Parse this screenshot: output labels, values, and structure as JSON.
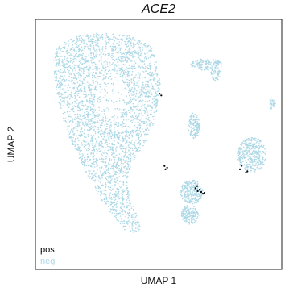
{
  "chart_data": {
    "type": "scatter",
    "title": "ACE2",
    "xlabel": "UMAP 1",
    "ylabel": "UMAP 2",
    "ticks_shown": false,
    "grid": false,
    "legend": {
      "placement": "bottom-left",
      "entries": [
        {
          "label": "pos",
          "color": "#000000"
        },
        {
          "label": "neg",
          "color": "#add8e6"
        }
      ]
    },
    "series": [
      {
        "name": "neg",
        "color": "#add8e6",
        "marker_size": "tiny"
      },
      {
        "name": "pos",
        "color": "#000000",
        "marker_size": "tiny"
      }
    ]
  }
}
